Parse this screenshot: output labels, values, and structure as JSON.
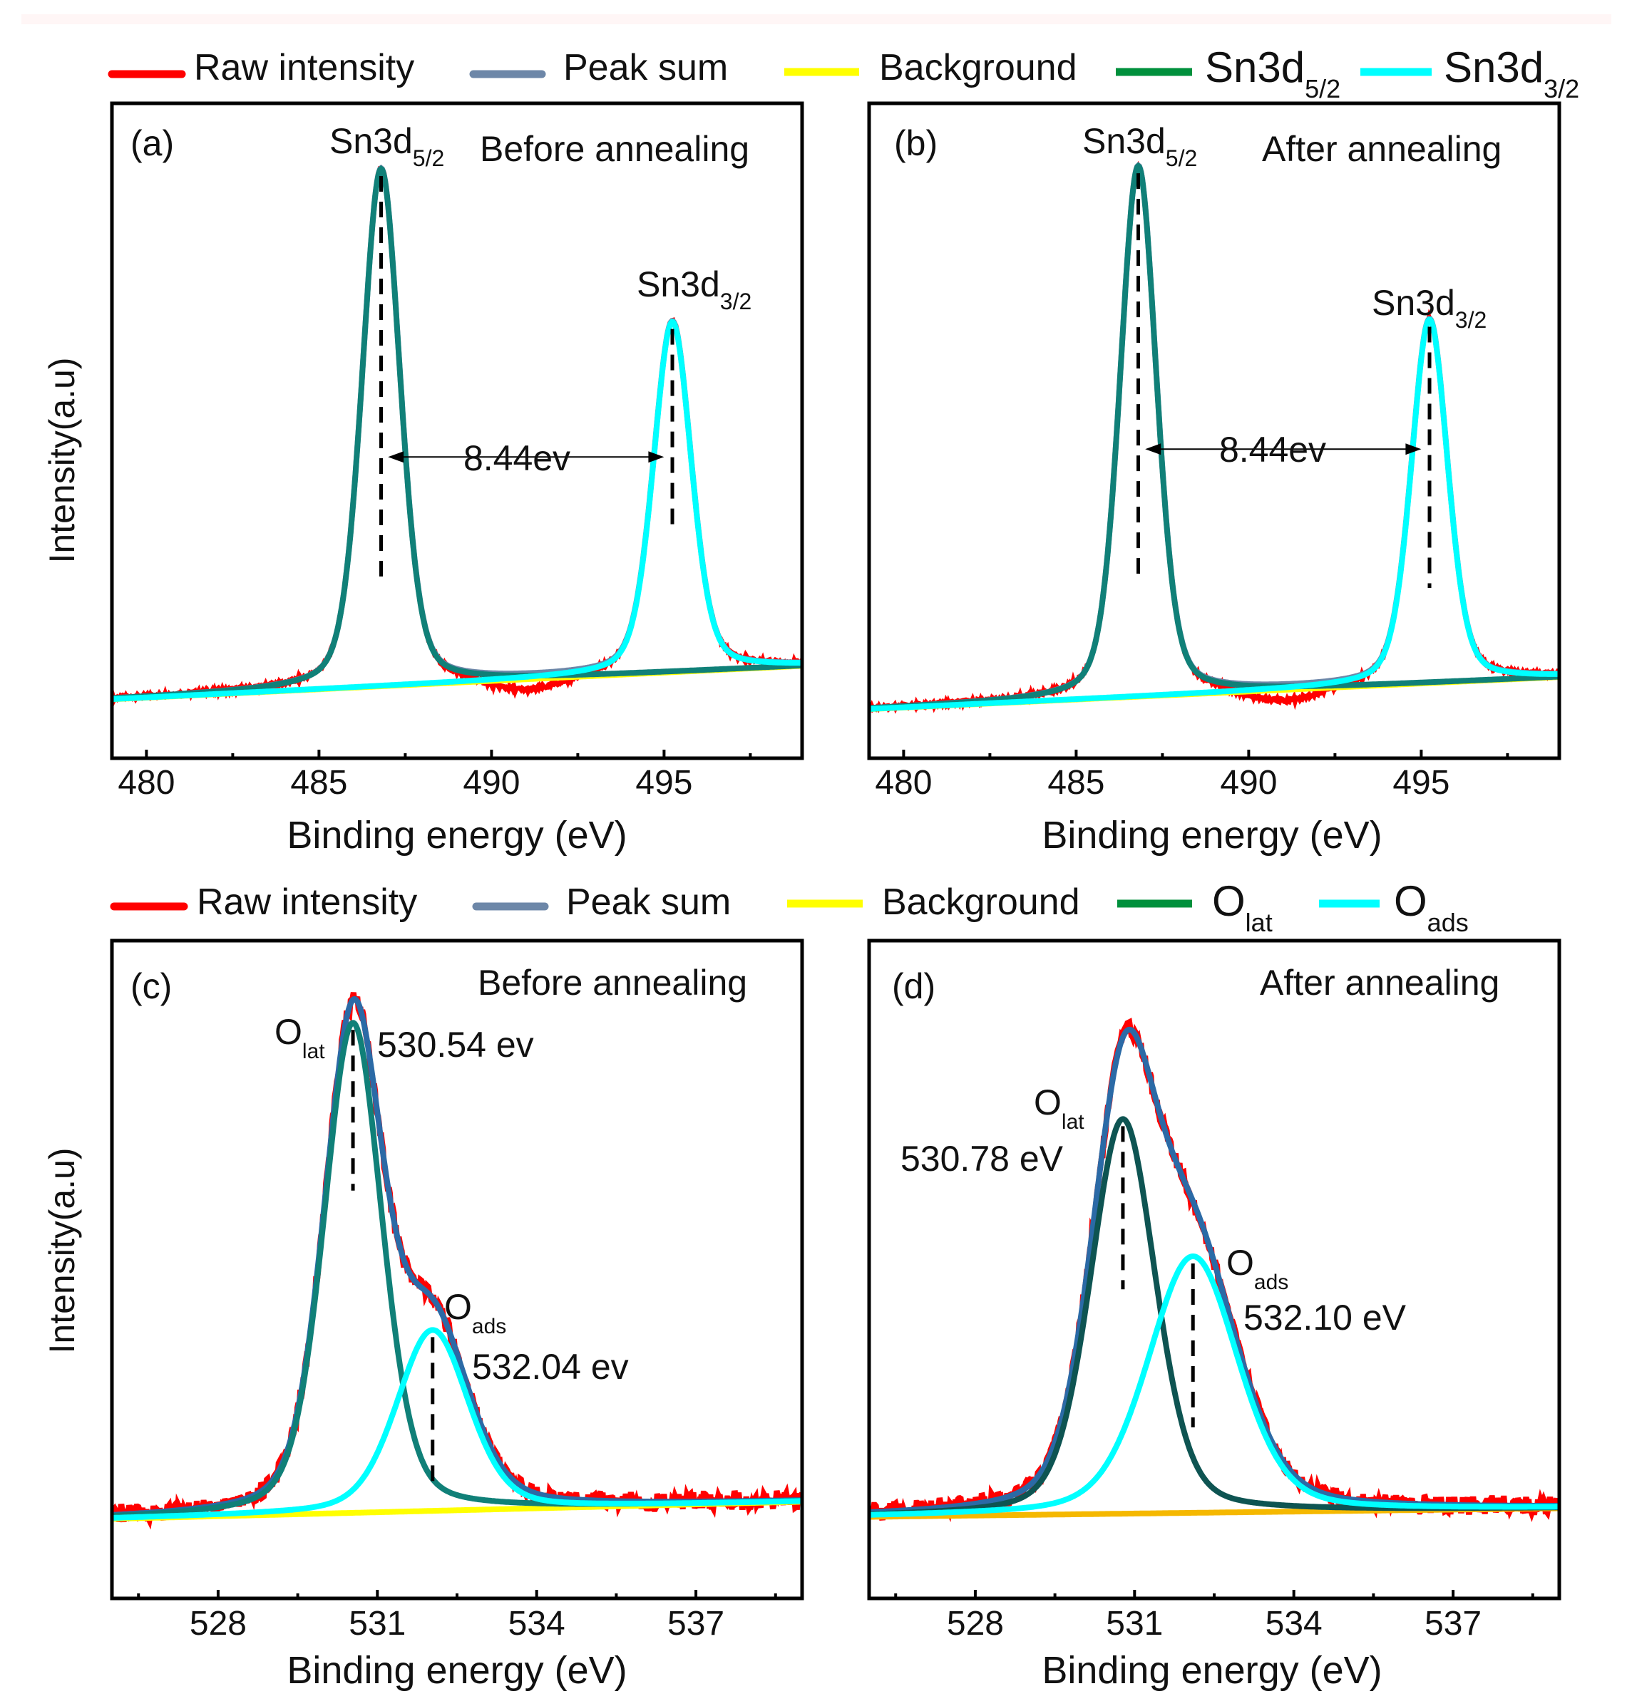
{
  "legend_top": [
    {
      "label": "Raw intensity",
      "sub": "",
      "color": "#ff0000"
    },
    {
      "label": "Peak sum",
      "sub": "",
      "color": "#6d87a8"
    },
    {
      "label": "Background",
      "sub": "",
      "color": "#ffff00"
    },
    {
      "label": "Sn3d",
      "sub": "5/2",
      "color": "#00903c"
    },
    {
      "label": "Sn3d",
      "sub": "3/2",
      "color": "#00ffff"
    }
  ],
  "legend_bottom": [
    {
      "label": "Raw intensity",
      "sub": "",
      "color": "#ff0000"
    },
    {
      "label": "Peak sum",
      "sub": "",
      "color": "#6d87a8"
    },
    {
      "label": "Background",
      "sub": "",
      "color": "#ffff00"
    },
    {
      "label": "O",
      "sub": "lat",
      "color": "#00903c"
    },
    {
      "label": "O",
      "sub": "ads",
      "color": "#00ffff"
    }
  ],
  "chart_data": [
    {
      "type": "line",
      "panel_label": "(a)",
      "title": "Before annealing",
      "xlabel": "Binding energy (eV)",
      "ylabel": "Intensity(a.u)",
      "xlim": [
        479,
        499
      ],
      "ylim": [
        0,
        1
      ],
      "xticks": [
        480,
        485,
        490,
        495
      ],
      "background": {
        "x": [
          479,
          499
        ],
        "y": [
          0.09,
          0.141
        ]
      },
      "peaks": [
        {
          "name": "Sn3d5/2",
          "center": 486.8,
          "height": 0.79,
          "fwhm": 1.3,
          "color": "#108078",
          "dash_to": 0.27
        },
        {
          "name": "Sn3d3/2",
          "center": 495.24,
          "height": 0.535,
          "fwhm": 1.3,
          "color": "#00ffff",
          "dash_to": 0.35
        }
      ],
      "raw_dip": {
        "center": 491,
        "depth": 0.025,
        "width": 2.2
      },
      "annotations": {
        "peak1": {
          "text": "Sn3d",
          "sub": "5/2"
        },
        "peak2": {
          "text": "Sn3d",
          "sub": "3/2"
        },
        "split": "8.44ev"
      },
      "split_arrow": {
        "from": 487.0,
        "to": 495.0,
        "y": 0.46
      }
    },
    {
      "type": "line",
      "panel_label": "(b)",
      "title": "After annealing",
      "xlabel": "Binding energy (eV)",
      "ylabel": "",
      "xlim": [
        479,
        499
      ],
      "ylim": [
        0,
        1
      ],
      "xticks": [
        480,
        485,
        490,
        495
      ],
      "background": {
        "x": [
          479,
          499
        ],
        "y": [
          0.075,
          0.124
        ]
      },
      "peaks": [
        {
          "name": "Sn3d5/2",
          "center": 486.8,
          "height": 0.81,
          "fwhm": 1.25,
          "color": "#108078",
          "dash_to": 0.27
        },
        {
          "name": "Sn3d3/2",
          "center": 495.24,
          "height": 0.555,
          "fwhm": 1.25,
          "color": "#00ffff",
          "dash_to": 0.26
        }
      ],
      "raw_dip": {
        "center": 491,
        "depth": 0.025,
        "width": 2.2
      },
      "annotations": {
        "peak1": {
          "text": "Sn3d",
          "sub": "5/2"
        },
        "peak2": {
          "text": "Sn3d",
          "sub": "3/2"
        },
        "split": "8.44ev"
      },
      "split_arrow": {
        "from": 487.0,
        "to": 495.0,
        "y": 0.472
      }
    },
    {
      "type": "line",
      "panel_label": "(c)",
      "title": "Before annealing",
      "xlabel": "Binding energy (eV)",
      "ylabel": "Intensity(a.u)",
      "xlim": [
        526,
        539
      ],
      "ylim": [
        0,
        1
      ],
      "xticks": [
        528,
        531,
        534,
        537
      ],
      "background": {
        "x": [
          526,
          539
        ],
        "y": [
          0.121,
          0.147
        ],
        "color": "#ffff00"
      },
      "peaks": [
        {
          "name": "Olat",
          "center": 530.54,
          "height": 0.745,
          "fwhm": 1.3,
          "color": "#108078",
          "dash_to": 0.62
        },
        {
          "name": "Oads",
          "center": 532.04,
          "height": 0.275,
          "fwhm": 1.6,
          "color": "#00ffff",
          "dash_to": 0.17
        }
      ],
      "sum_color": "#2b6aa6",
      "annotations": {
        "peak1": {
          "text": "O",
          "sub": "lat",
          "value": "530.54 ev"
        },
        "peak2": {
          "text": "O",
          "sub": "ads",
          "value": "532.04 ev"
        }
      }
    },
    {
      "type": "line",
      "panel_label": "(d)",
      "title": "After annealing",
      "xlabel": "Binding energy (eV)",
      "ylabel": "",
      "xlim": [
        526,
        539
      ],
      "ylim": [
        0,
        1
      ],
      "xticks": [
        528,
        531,
        534,
        537
      ],
      "background": {
        "x": [
          526,
          539
        ],
        "y": [
          0.124,
          0.137
        ],
        "color": "#f5b800"
      },
      "peaks": [
        {
          "name": "Olat",
          "center": 530.78,
          "height": 0.6,
          "fwhm": 1.45,
          "color": "#0e5452",
          "dash_to": 0.47
        },
        {
          "name": "Oads",
          "center": 532.1,
          "height": 0.39,
          "fwhm": 2.0,
          "color": "#00ffff",
          "dash_to": 0.26
        }
      ],
      "sum_color": "#2b6aa6",
      "annotations": {
        "peak1": {
          "text": "O",
          "sub": "lat",
          "value": "530.78 eV"
        },
        "peak2": {
          "text": "O",
          "sub": "ads",
          "value": "532.10 eV"
        }
      }
    }
  ]
}
